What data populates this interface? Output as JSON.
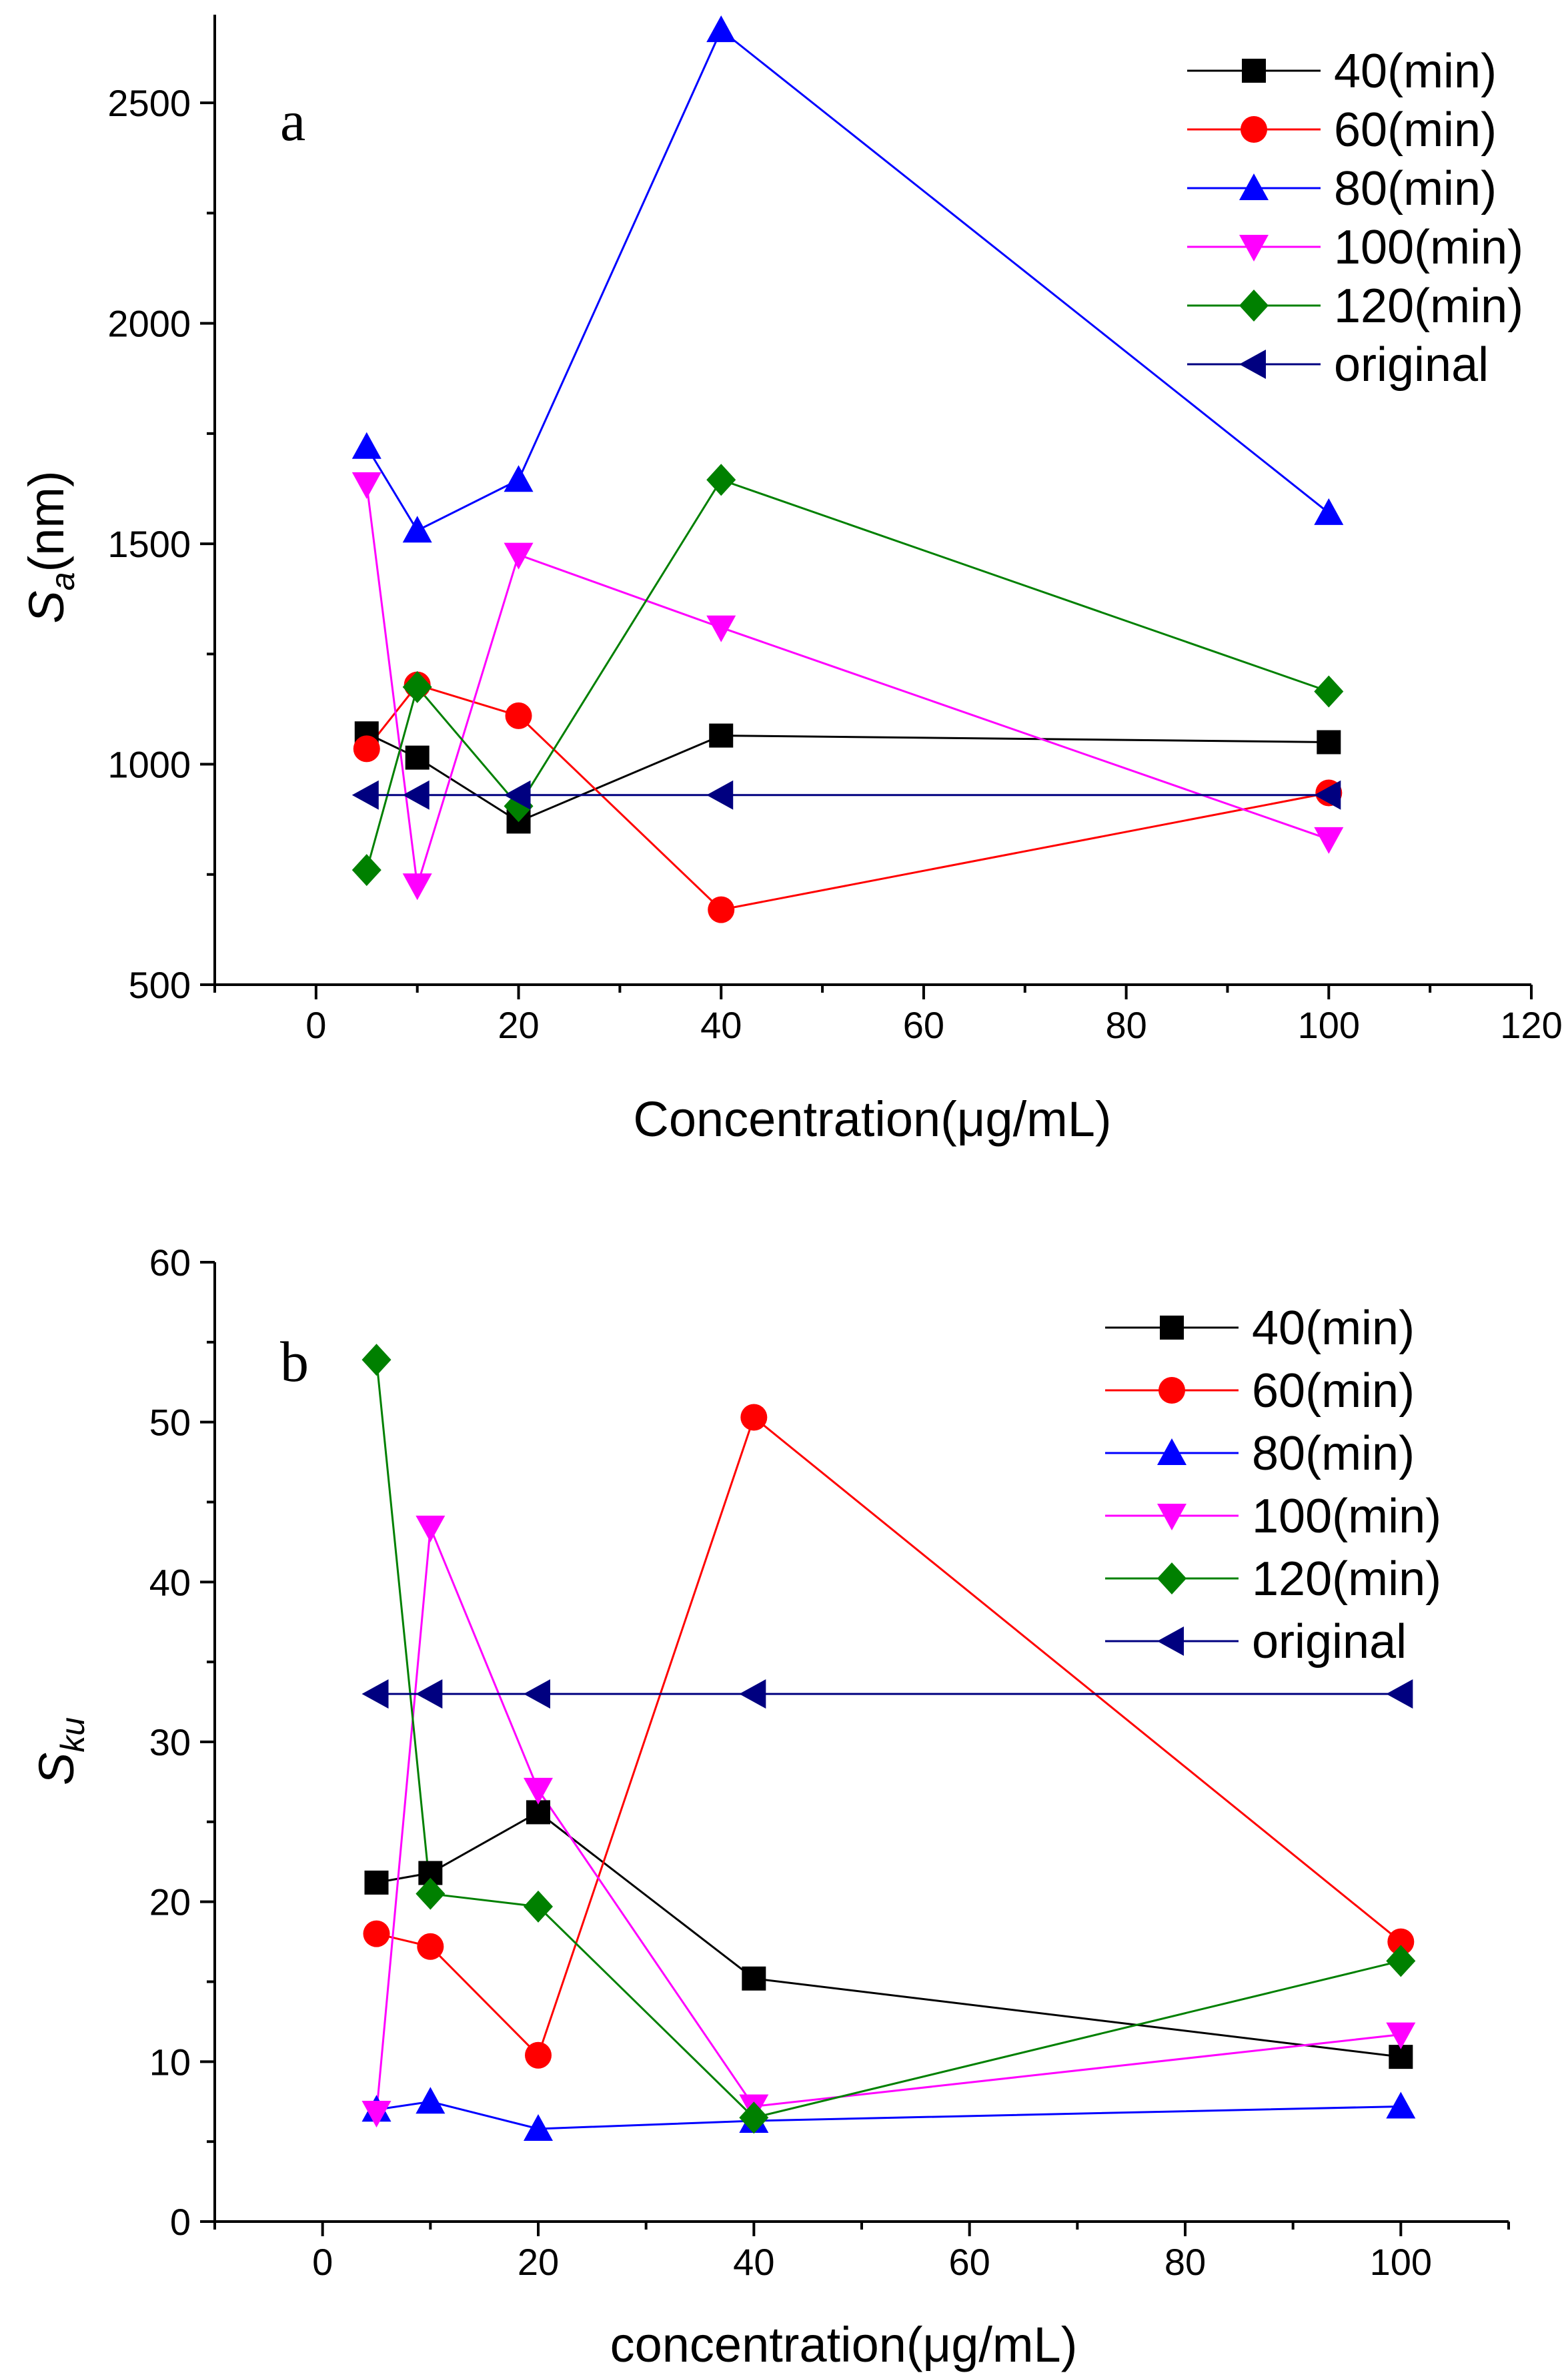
{
  "chart_data": [
    {
      "type": "line",
      "panel_label": "a",
      "xlabel": "Concentration(μg/mL)",
      "ylabel": {
        "main": "S",
        "sub": "a",
        "unit": "(nm)"
      },
      "xlim": [
        -10,
        120
      ],
      "ylim": [
        500,
        2700
      ],
      "xticks": [
        0,
        20,
        40,
        60,
        80,
        100,
        120
      ],
      "yticks": [
        500,
        1000,
        1500,
        2000,
        2500
      ],
      "legend_position": "top-right",
      "series": [
        {
          "name": "40(min)",
          "color": "#000000",
          "marker": "square",
          "x": [
            5,
            10,
            20,
            40,
            100
          ],
          "y": [
            1070,
            1015,
            870,
            1065,
            1050
          ]
        },
        {
          "name": "60(min)",
          "color": "#ff0000",
          "marker": "circle",
          "x": [
            5,
            10,
            20,
            40,
            100
          ],
          "y": [
            1035,
            1180,
            1110,
            670,
            935
          ]
        },
        {
          "name": "80(min)",
          "color": "#0000ff",
          "marker": "triangle-up",
          "x": [
            5,
            10,
            20,
            40,
            100
          ],
          "y": [
            1720,
            1530,
            1645,
            2665,
            1570
          ]
        },
        {
          "name": "100(min)",
          "color": "#ff00ff",
          "marker": "triangle-down",
          "x": [
            5,
            10,
            20,
            40,
            100
          ],
          "y": [
            1635,
            725,
            1475,
            1310,
            830
          ]
        },
        {
          "name": "120(min)",
          "color": "#008000",
          "marker": "diamond",
          "x": [
            5,
            10,
            20,
            40,
            100
          ],
          "y": [
            760,
            1175,
            905,
            1645,
            1165
          ]
        },
        {
          "name": "original",
          "color": "#000080",
          "marker": "triangle-left",
          "x": [
            5,
            10,
            20,
            40,
            100
          ],
          "y": [
            930,
            930,
            930,
            930,
            930
          ]
        }
      ]
    },
    {
      "type": "line",
      "panel_label": "b",
      "xlabel": "concentration(μg/mL)",
      "ylabel": {
        "main": "S",
        "sub": "ku",
        "unit": ""
      },
      "xlim": [
        -10,
        110
      ],
      "ylim": [
        0,
        60
      ],
      "xticks": [
        0,
        20,
        40,
        60,
        80,
        100
      ],
      "yticks": [
        0,
        10,
        20,
        30,
        40,
        50,
        60
      ],
      "legend_position": "top-right",
      "series": [
        {
          "name": "40(min)",
          "color": "#000000",
          "marker": "square",
          "x": [
            5,
            10,
            20,
            40,
            100
          ],
          "y": [
            21.2,
            21.8,
            25.6,
            15.2,
            10.3
          ]
        },
        {
          "name": "60(min)",
          "color": "#ff0000",
          "marker": "circle",
          "x": [
            5,
            10,
            20,
            40,
            100
          ],
          "y": [
            18.0,
            17.2,
            10.4,
            50.3,
            17.5
          ]
        },
        {
          "name": "80(min)",
          "color": "#0000ff",
          "marker": "triangle-up",
          "x": [
            5,
            10,
            20,
            40,
            100
          ],
          "y": [
            7.0,
            7.5,
            5.8,
            6.3,
            7.2
          ]
        },
        {
          "name": "100(min)",
          "color": "#ff00ff",
          "marker": "triangle-down",
          "x": [
            5,
            10,
            20,
            40,
            100
          ],
          "y": [
            6.8,
            43.4,
            27.0,
            7.2,
            11.7
          ]
        },
        {
          "name": "120(min)",
          "color": "#008000",
          "marker": "diamond",
          "x": [
            5,
            10,
            20,
            40,
            100
          ],
          "y": [
            53.9,
            20.5,
            19.7,
            6.5,
            16.3
          ]
        },
        {
          "name": "original",
          "color": "#000080",
          "marker": "triangle-left",
          "x": [
            5,
            10,
            20,
            40,
            100
          ],
          "y": [
            33.0,
            33.0,
            33.0,
            33.0,
            33.0
          ]
        }
      ]
    }
  ]
}
